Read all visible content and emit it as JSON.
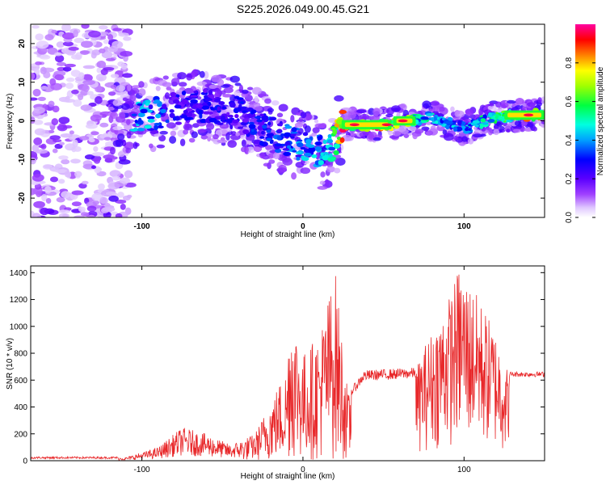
{
  "title": "S225.2026.049.00.45.G21",
  "colors": {
    "snr_line": "#e8282a",
    "frame": "#000000",
    "colorbar": [
      "#ffffff",
      "#d9b8ff",
      "#8a2be2",
      "#5b00ff",
      "#0000ff",
      "#00a0ff",
      "#00ffe0",
      "#00ff40",
      "#80ff00",
      "#ffff00",
      "#ff8000",
      "#ff0000",
      "#ff00a0"
    ]
  },
  "chart_data": [
    {
      "type": "heatmap",
      "title": "S225.2026.049.00.45.G21",
      "xlabel": "Height of straight line (km)",
      "ylabel": "Frequency (Hz)",
      "xlim": [
        -169,
        150
      ],
      "ylim": [
        -25,
        25
      ],
      "xticks": [
        -100,
        0,
        100
      ],
      "xtick_labels": [
        "-100",
        "0",
        "100"
      ],
      "yticks": [
        -20,
        -10,
        0,
        10,
        20
      ],
      "ytick_labels": [
        "-20",
        "-10",
        "0",
        "10",
        "20"
      ],
      "colorbar": {
        "label": "Normalized spectral amplitude",
        "range": [
          0,
          1
        ],
        "ticks": [
          0.0,
          0.2,
          0.4,
          0.6,
          0.8
        ],
        "tick_labels": [
          "0.0",
          "0.2",
          "0.4",
          "0.6",
          "0.8"
        ]
      },
      "ridge": {
        "description_points": [
          {
            "x": -100,
            "y": 1,
            "amp": 0.5
          },
          {
            "x": -80,
            "y": 3,
            "amp": 0.3
          },
          {
            "x": -60,
            "y": 4,
            "amp": 0.3
          },
          {
            "x": -40,
            "y": 2,
            "amp": 0.3
          },
          {
            "x": -25,
            "y": -2,
            "amp": 0.35
          },
          {
            "x": -10,
            "y": -5,
            "amp": 0.4
          },
          {
            "x": 5,
            "y": -7,
            "amp": 0.45
          },
          {
            "x": 15,
            "y": -9,
            "amp": 0.45
          },
          {
            "x": 25,
            "y": -1,
            "amp": 0.95
          },
          {
            "x": 55,
            "y": -1,
            "amp": 0.95
          },
          {
            "x": 60,
            "y": 0,
            "amp": 0.9
          },
          {
            "x": 70,
            "y": 0,
            "amp": 0.6
          },
          {
            "x": 80,
            "y": 1,
            "amp": 0.5
          },
          {
            "x": 100,
            "y": -2,
            "amp": 0.45
          },
          {
            "x": 120,
            "y": 1,
            "amp": 0.6
          },
          {
            "x": 140,
            "y": 1.5,
            "amp": 0.85
          },
          {
            "x": 150,
            "y": 1.5,
            "amp": 0.85
          }
        ]
      }
    },
    {
      "type": "line",
      "xlabel": "Height of straight line (km)",
      "ylabel": "SNR (10 * v/v)",
      "xlim": [
        -169,
        150
      ],
      "ylim": [
        0,
        1450
      ],
      "xticks": [
        -100,
        0,
        100
      ],
      "xtick_labels": [
        "-100",
        "0",
        "100"
      ],
      "yticks": [
        0,
        200,
        400,
        600,
        800,
        1000,
        1200,
        1400
      ],
      "ytick_labels": [
        "0",
        "200",
        "400",
        "600",
        "800",
        "1000",
        "1200",
        "1400"
      ],
      "envelope_points": [
        {
          "x": -169,
          "y": 20
        },
        {
          "x": -110,
          "y": 25
        },
        {
          "x": -90,
          "y": 100
        },
        {
          "x": -75,
          "y": 250
        },
        {
          "x": -60,
          "y": 200
        },
        {
          "x": -45,
          "y": 120
        },
        {
          "x": -30,
          "y": 200
        },
        {
          "x": -20,
          "y": 450
        },
        {
          "x": -10,
          "y": 700
        },
        {
          "x": -8,
          "y": 1180
        },
        {
          "x": 0,
          "y": 800
        },
        {
          "x": 10,
          "y": 950
        },
        {
          "x": 20,
          "y": 1430
        },
        {
          "x": 28,
          "y": 500
        },
        {
          "x": 38,
          "y": 660
        },
        {
          "x": 70,
          "y": 680
        },
        {
          "x": 75,
          "y": 850
        },
        {
          "x": 90,
          "y": 1200
        },
        {
          "x": 97,
          "y": 1450
        },
        {
          "x": 110,
          "y": 1200
        },
        {
          "x": 120,
          "y": 950
        },
        {
          "x": 128,
          "y": 650
        },
        {
          "x": 150,
          "y": 650
        }
      ]
    }
  ]
}
